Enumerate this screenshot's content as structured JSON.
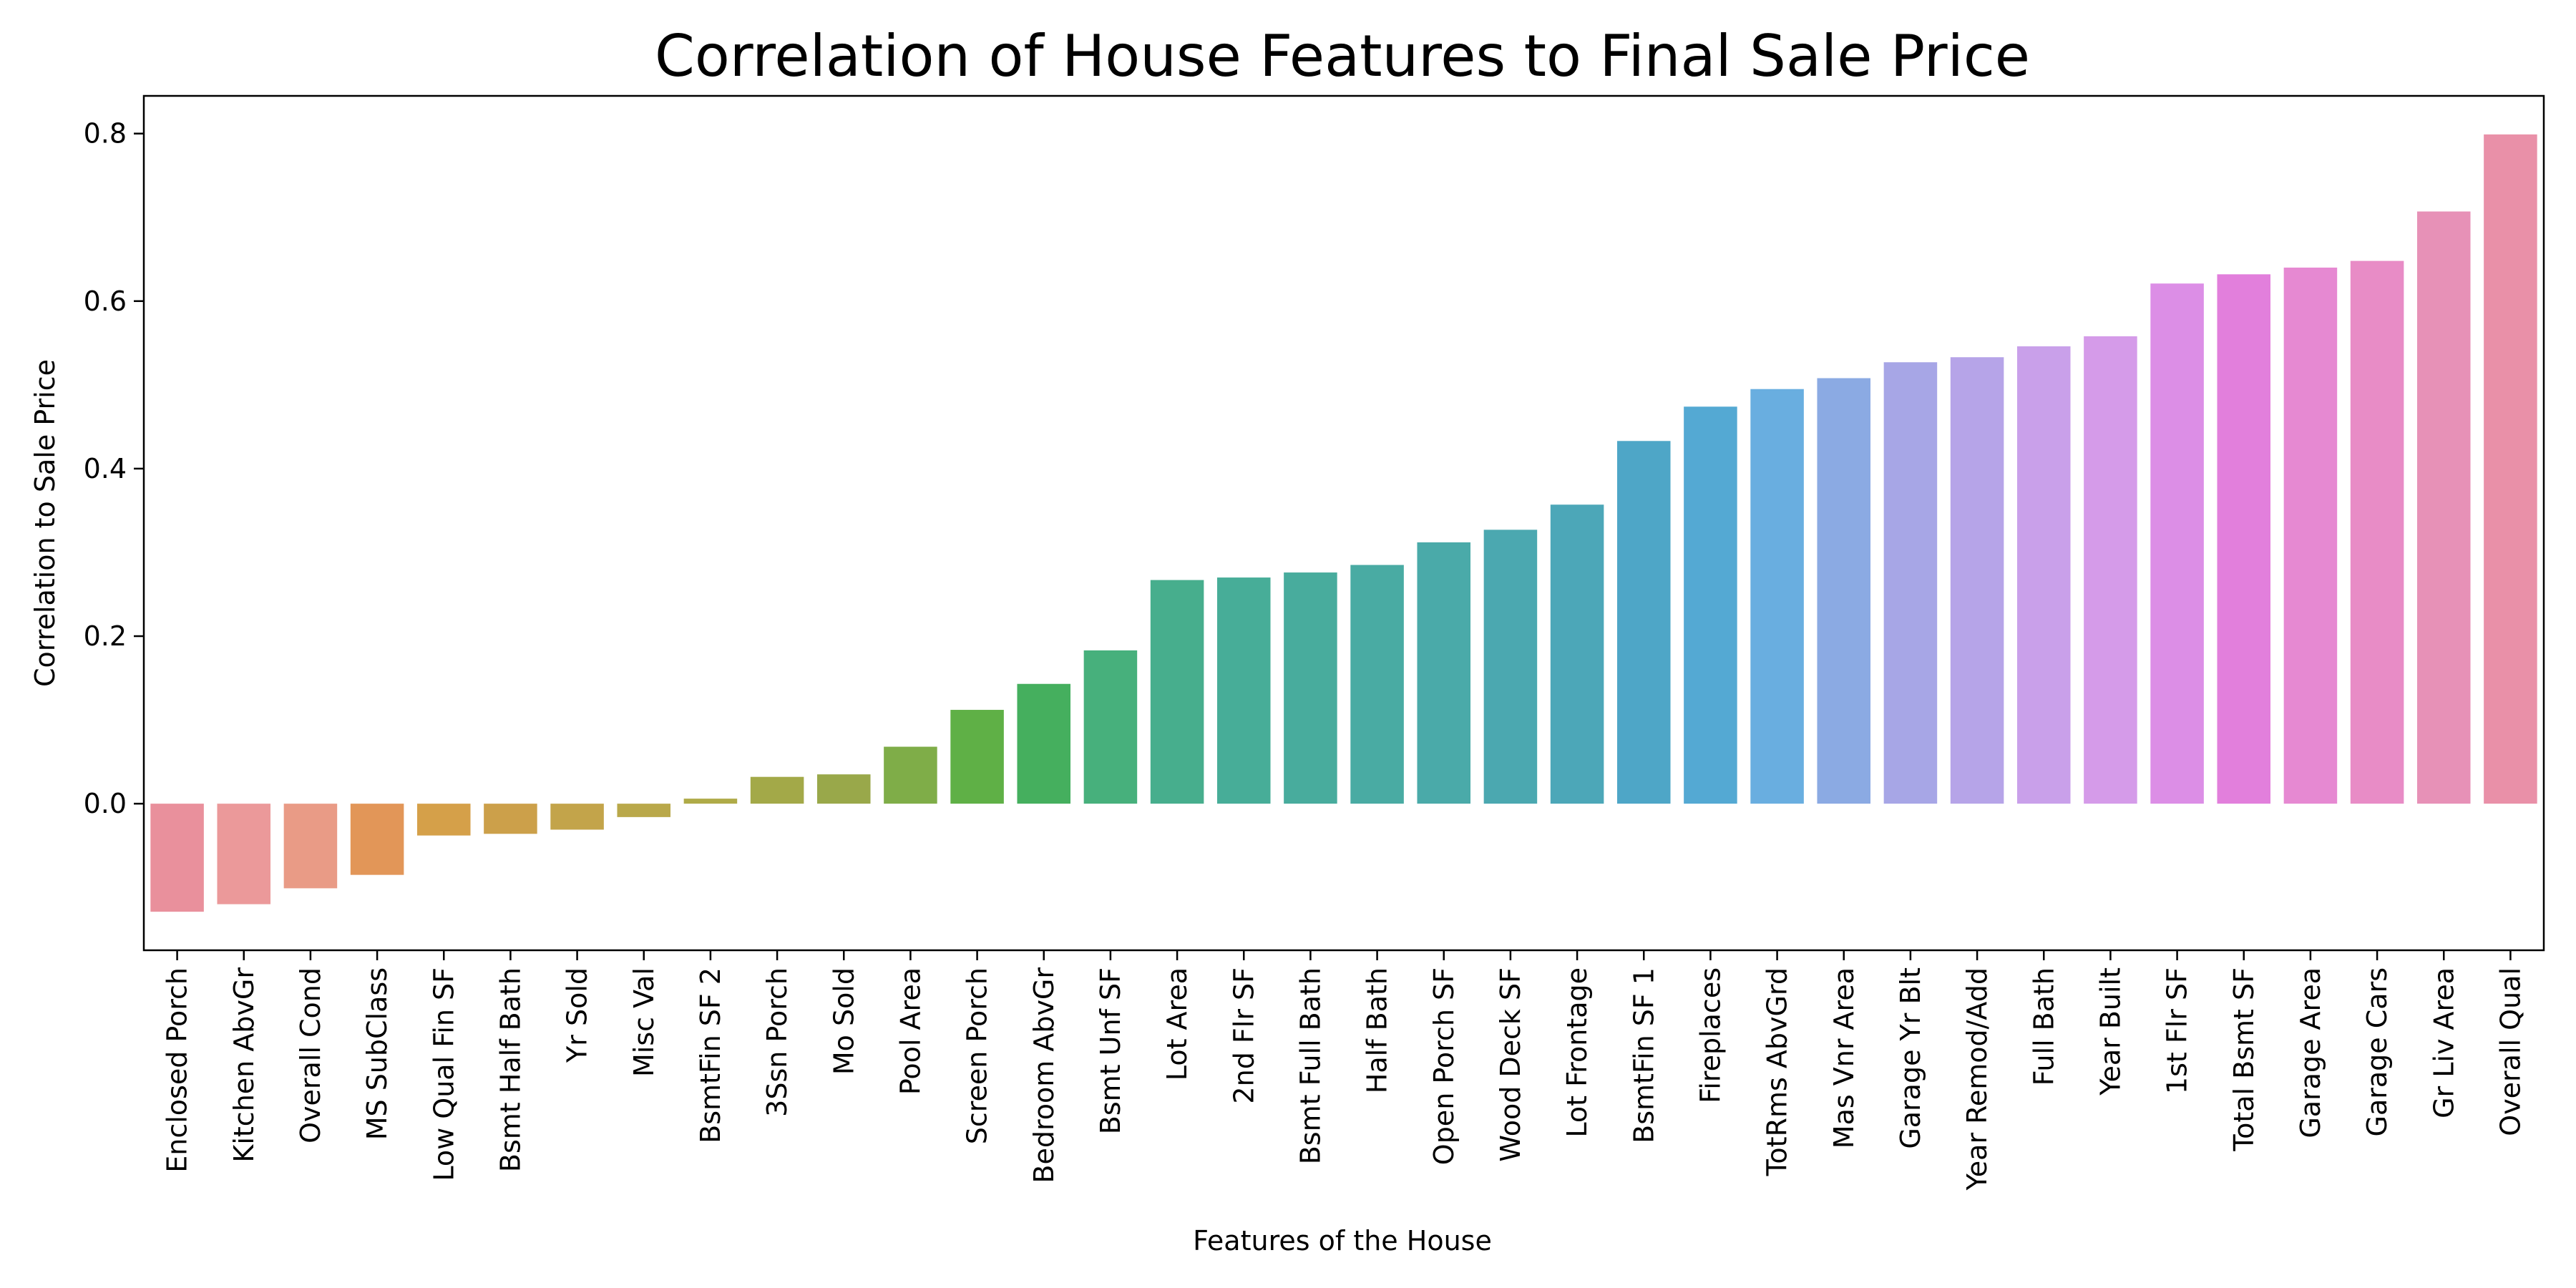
{
  "chart_data": {
    "type": "bar",
    "title": "Correlation of House Features to Final Sale Price",
    "xlabel": "Features of the House",
    "ylabel": "Correlation to Sale Price",
    "ylim": [
      -0.175,
      0.845
    ],
    "yticks": [
      "0.0",
      "0.2",
      "0.4",
      "0.6",
      "0.8"
    ],
    "ytick_values": [
      0.0,
      0.2,
      0.4,
      0.6,
      0.8
    ],
    "grid": false,
    "legend": "none",
    "categories": [
      "Enclosed Porch",
      "Kitchen AbvGr",
      "Overall Cond",
      "MS SubClass",
      "Low Qual Fin SF",
      "Bsmt Half Bath",
      "Yr Sold",
      "Misc Val",
      "BsmtFin SF 2",
      "3Ssn Porch",
      "Mo Sold",
      "Pool Area",
      "Screen Porch",
      "Bedroom AbvGr",
      "Bsmt Unf SF",
      "Lot Area",
      "2nd Flr SF",
      "Bsmt Full Bath",
      "Half Bath",
      "Open Porch SF",
      "Wood Deck SF",
      "Lot Frontage",
      "BsmtFin SF 1",
      "Fireplaces",
      "TotRms AbvGrd",
      "Mas Vnr Area",
      "Garage Yr Blt",
      "Year Remod/Add",
      "Full Bath",
      "Year Built",
      "1st Flr SF",
      "Total Bsmt SF",
      "Garage Area",
      "Garage Cars",
      "Gr Liv Area",
      "Overall Qual"
    ],
    "values": [
      -0.129,
      -0.12,
      -0.101,
      -0.085,
      -0.038,
      -0.036,
      -0.031,
      -0.016,
      0.006,
      0.032,
      0.035,
      0.068,
      0.112,
      0.143,
      0.183,
      0.267,
      0.27,
      0.276,
      0.285,
      0.312,
      0.327,
      0.357,
      0.433,
      0.474,
      0.495,
      0.508,
      0.527,
      0.533,
      0.546,
      0.558,
      0.621,
      0.632,
      0.64,
      0.648,
      0.707,
      0.799
    ],
    "colors": [
      "#e9909c",
      "#eb999a",
      "#e99b86",
      "#e29658",
      "#d5a049",
      "#cca04a",
      "#c3a44a",
      "#b9a84a",
      "#afab48",
      "#a3a948",
      "#99a84a",
      "#7fad48",
      "#5fb046",
      "#45af5e",
      "#47b07c",
      "#47ae8d",
      "#47ad98",
      "#48ac9d",
      "#49aba3",
      "#4aaaa9",
      "#4ba8b0",
      "#4ca7b8",
      "#4ea6c7",
      "#54a9d3",
      "#69aee0",
      "#8baae3",
      "#a7a6e6",
      "#b6a4e8",
      "#c9a0ea",
      "#d59be9",
      "#dc8ee6",
      "#e27fdc",
      "#e689d2",
      "#e88cc6",
      "#e791b7",
      "#e990a8"
    ]
  }
}
